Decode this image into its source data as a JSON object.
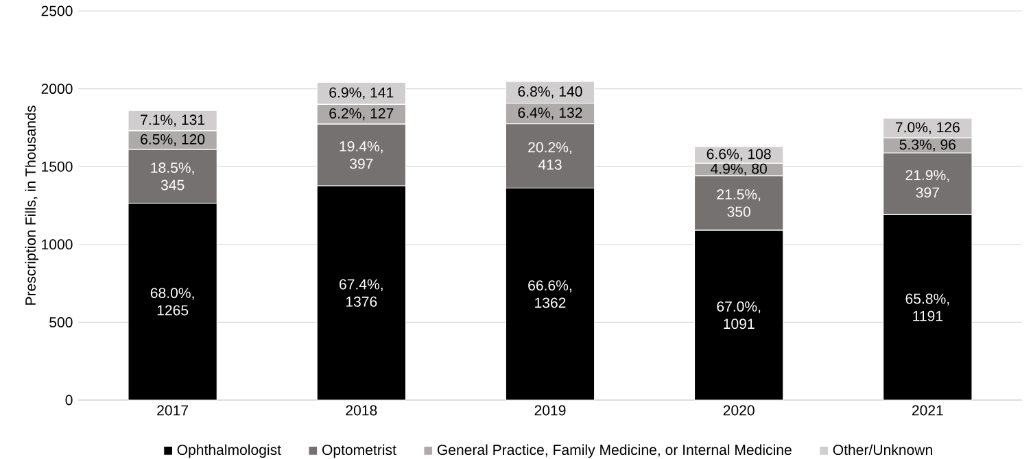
{
  "chart_data": {
    "type": "bar",
    "stacked": true,
    "ylabel": "Prescription Fills, in Thousands",
    "categories": [
      "2017",
      "2018",
      "2019",
      "2020",
      "2021"
    ],
    "series": [
      {
        "name": "Ophthalmologist",
        "color": "#000000",
        "values": [
          1265,
          1376,
          1362,
          1091,
          1191
        ],
        "value_labels": [
          "68.0%, 1265",
          "67.4%, 1376",
          "66.6%, 1362",
          "67.0%, 1091",
          "65.8%, 1191"
        ]
      },
      {
        "name": "Optometrist",
        "color": "#767171",
        "values": [
          345,
          397,
          413,
          350,
          397
        ],
        "value_labels": [
          "18.5%, 345",
          "19.4%, 397",
          "20.2%, 413",
          "21.5%, 350",
          "21.9%, 397"
        ]
      },
      {
        "name": "General Practice, Family Medicine, or Internal Medicine",
        "color": "#aeaaaa",
        "values": [
          120,
          127,
          132,
          80,
          96
        ],
        "value_labels": [
          "6.5%, 120",
          "6.2%, 127",
          "6.4%, 132",
          "4.9%, 80",
          "5.3%, 96"
        ]
      },
      {
        "name": "Other/Unknown",
        "color": "#d0cece",
        "values": [
          131,
          141,
          140,
          108,
          126
        ],
        "value_labels": [
          "7.1%, 131",
          "6.9%, 141",
          "6.8%, 140",
          "6.6%, 108",
          "7.0%, 126"
        ]
      }
    ],
    "ylim": [
      0,
      2500
    ],
    "yticks": [
      0,
      500,
      1000,
      1500,
      2000,
      2500
    ],
    "grid": "y",
    "legend": "bottom"
  }
}
